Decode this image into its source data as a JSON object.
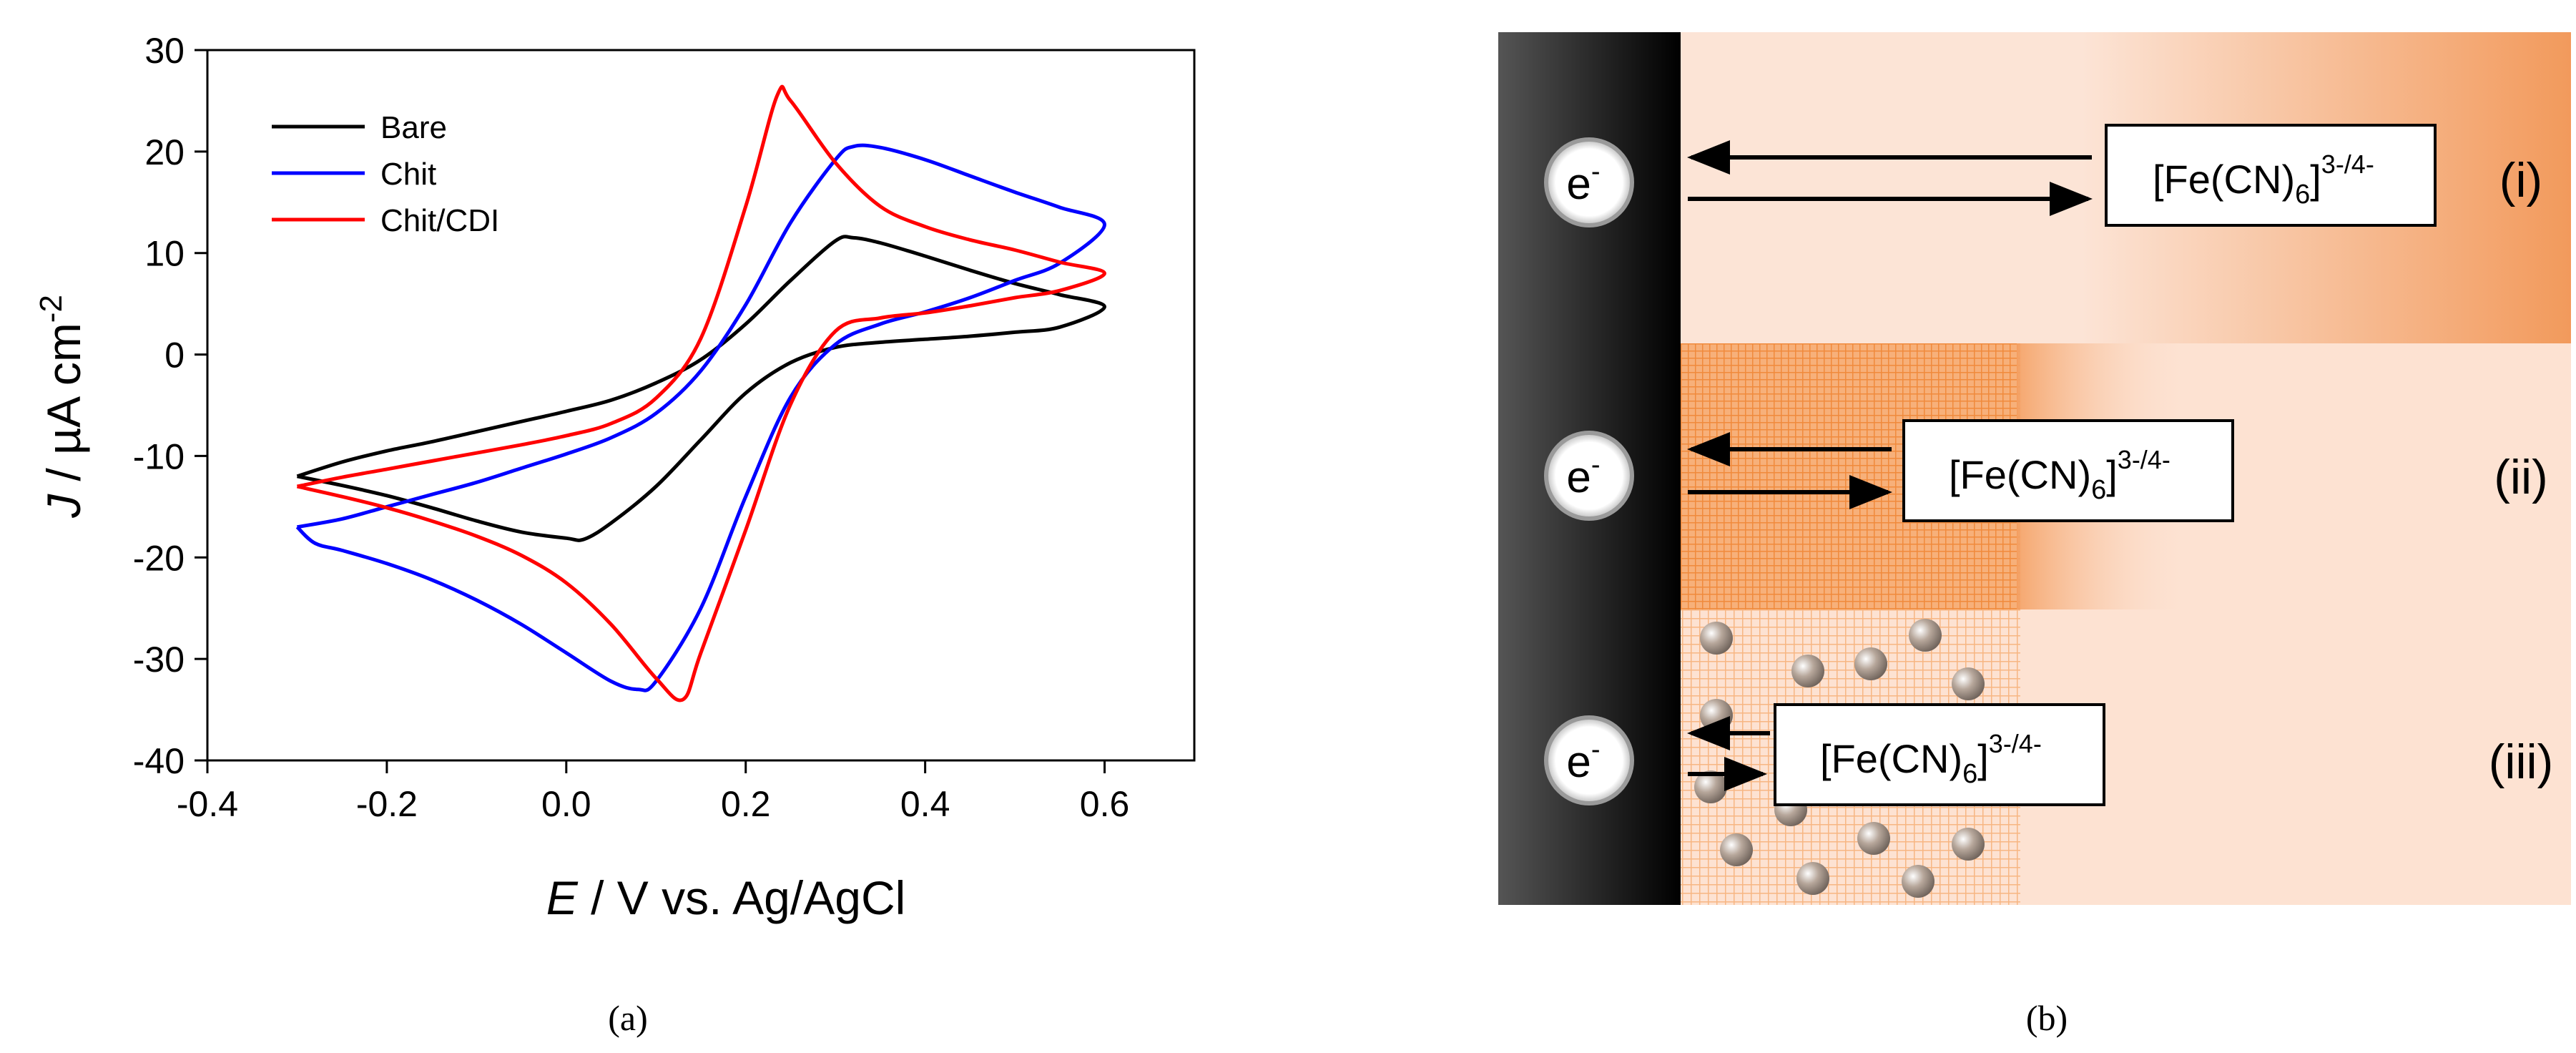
{
  "chart_data": {
    "type": "line",
    "title": "",
    "xlabel_italic": "E",
    "xlabel_rest": " / V vs. Ag/AgCl",
    "ylabel_italic": "J",
    "ylabel_rest": " / µA cm",
    "ylabel_sup": "-2",
    "xlim": [
      -0.4,
      0.7
    ],
    "ylim": [
      -40,
      30
    ],
    "xticks": [
      -0.4,
      -0.2,
      0.0,
      0.2,
      0.4,
      0.6
    ],
    "xtick_labels": [
      "-0.4",
      "-0.2",
      "0.0",
      "0.2",
      "0.4",
      "0.6"
    ],
    "yticks": [
      -40,
      -30,
      -20,
      -10,
      0,
      10,
      20,
      30
    ],
    "ytick_labels": [
      "-40",
      "-30",
      "-20",
      "-10",
      "0",
      "10",
      "20",
      "30"
    ],
    "grid": false,
    "legend_position": "top-left",
    "series": [
      {
        "name": "Bare",
        "color": "#000000",
        "points": [
          [
            -0.3,
            -12
          ],
          [
            -0.25,
            -10.6
          ],
          [
            -0.2,
            -9.5
          ],
          [
            -0.15,
            -8.6
          ],
          [
            -0.1,
            -7.6
          ],
          [
            -0.05,
            -6.6
          ],
          [
            0.0,
            -5.6
          ],
          [
            0.05,
            -4.5
          ],
          [
            0.1,
            -2.8
          ],
          [
            0.15,
            -0.5
          ],
          [
            0.2,
            3
          ],
          [
            0.25,
            7.3
          ],
          [
            0.3,
            11.2
          ],
          [
            0.32,
            11.5
          ],
          [
            0.35,
            11
          ],
          [
            0.4,
            9.7
          ],
          [
            0.45,
            8.3
          ],
          [
            0.5,
            7
          ],
          [
            0.55,
            5.9
          ],
          [
            0.6,
            4.7
          ],
          [
            0.55,
            2.7
          ],
          [
            0.5,
            2.2
          ],
          [
            0.45,
            1.8
          ],
          [
            0.4,
            1.5
          ],
          [
            0.35,
            1.2
          ],
          [
            0.3,
            0.7
          ],
          [
            0.25,
            -0.8
          ],
          [
            0.2,
            -3.8
          ],
          [
            0.15,
            -8.4
          ],
          [
            0.1,
            -13
          ],
          [
            0.05,
            -16.6
          ],
          [
            0.02,
            -18.2
          ],
          [
            0.0,
            -18.1
          ],
          [
            -0.05,
            -17.5
          ],
          [
            -0.1,
            -16.4
          ],
          [
            -0.15,
            -15.1
          ],
          [
            -0.2,
            -13.9
          ],
          [
            -0.25,
            -12.9
          ],
          [
            -0.3,
            -12
          ]
        ]
      },
      {
        "name": "Chit",
        "color": "#0000ff",
        "points": [
          [
            -0.3,
            -17
          ],
          [
            -0.25,
            -16.2
          ],
          [
            -0.2,
            -15
          ],
          [
            -0.15,
            -13.8
          ],
          [
            -0.1,
            -12.6
          ],
          [
            -0.05,
            -11.2
          ],
          [
            0.0,
            -9.8
          ],
          [
            0.05,
            -8.2
          ],
          [
            0.1,
            -5.8
          ],
          [
            0.15,
            -1.6
          ],
          [
            0.2,
            4.9
          ],
          [
            0.25,
            13
          ],
          [
            0.3,
            19.2
          ],
          [
            0.32,
            20.5
          ],
          [
            0.35,
            20.4
          ],
          [
            0.4,
            19.2
          ],
          [
            0.45,
            17.6
          ],
          [
            0.5,
            16
          ],
          [
            0.55,
            14.5
          ],
          [
            0.6,
            12.8
          ],
          [
            0.55,
            9
          ],
          [
            0.5,
            7.3
          ],
          [
            0.45,
            5.6
          ],
          [
            0.4,
            4.2
          ],
          [
            0.35,
            3
          ],
          [
            0.3,
            1
          ],
          [
            0.25,
            -4.2
          ],
          [
            0.2,
            -14
          ],
          [
            0.15,
            -25
          ],
          [
            0.1,
            -32.2
          ],
          [
            0.08,
            -33
          ],
          [
            0.05,
            -32.2
          ],
          [
            0.0,
            -29.4
          ],
          [
            -0.05,
            -26.6
          ],
          [
            -0.1,
            -24.2
          ],
          [
            -0.15,
            -22.2
          ],
          [
            -0.2,
            -20.6
          ],
          [
            -0.25,
            -19.3
          ],
          [
            -0.28,
            -18.6
          ],
          [
            -0.3,
            -17
          ]
        ]
      },
      {
        "name": "Chit/CDI",
        "color": "#ff0000",
        "points": [
          [
            -0.3,
            -13
          ],
          [
            -0.25,
            -12.1
          ],
          [
            -0.2,
            -11.3
          ],
          [
            -0.15,
            -10.5
          ],
          [
            -0.1,
            -9.7
          ],
          [
            -0.05,
            -8.9
          ],
          [
            0.0,
            -8
          ],
          [
            0.05,
            -6.8
          ],
          [
            0.1,
            -4.3
          ],
          [
            0.15,
            1.6
          ],
          [
            0.2,
            14.6
          ],
          [
            0.235,
            25.5
          ],
          [
            0.25,
            25
          ],
          [
            0.3,
            18.9
          ],
          [
            0.35,
            14.6
          ],
          [
            0.4,
            12.6
          ],
          [
            0.45,
            11.3
          ],
          [
            0.5,
            10.3
          ],
          [
            0.55,
            9.1
          ],
          [
            0.6,
            8
          ],
          [
            0.55,
            6.3
          ],
          [
            0.5,
            5.6
          ],
          [
            0.45,
            4.8
          ],
          [
            0.4,
            4.1
          ],
          [
            0.35,
            3.6
          ],
          [
            0.3,
            2.3
          ],
          [
            0.25,
            -4.9
          ],
          [
            0.2,
            -17.3
          ],
          [
            0.15,
            -29.4
          ],
          [
            0.13,
            -34
          ],
          [
            0.1,
            -31.9
          ],
          [
            0.05,
            -26.6
          ],
          [
            0.0,
            -22.5
          ],
          [
            -0.05,
            -19.8
          ],
          [
            -0.1,
            -17.9
          ],
          [
            -0.15,
            -16.4
          ],
          [
            -0.2,
            -15.1
          ],
          [
            -0.25,
            -14
          ],
          [
            -0.3,
            -13
          ]
        ]
      }
    ]
  },
  "panel_a_label": "(a)",
  "panel_b_label": "(b)",
  "diagram": {
    "electron_label": "e",
    "electron_sup": "-",
    "species_label": "[Fe(CN)",
    "species_sub": "6",
    "species_close": "]",
    "species_sup": "3-/4-",
    "rows": [
      {
        "roman": "(i)"
      },
      {
        "roman": "(ii)"
      },
      {
        "roman": "(iii)"
      }
    ],
    "colors": {
      "electrode_dark": "#000000",
      "electrode_light": "#4d4d4d",
      "solution": "#fde2d2",
      "orange": "#f08a3c"
    }
  }
}
